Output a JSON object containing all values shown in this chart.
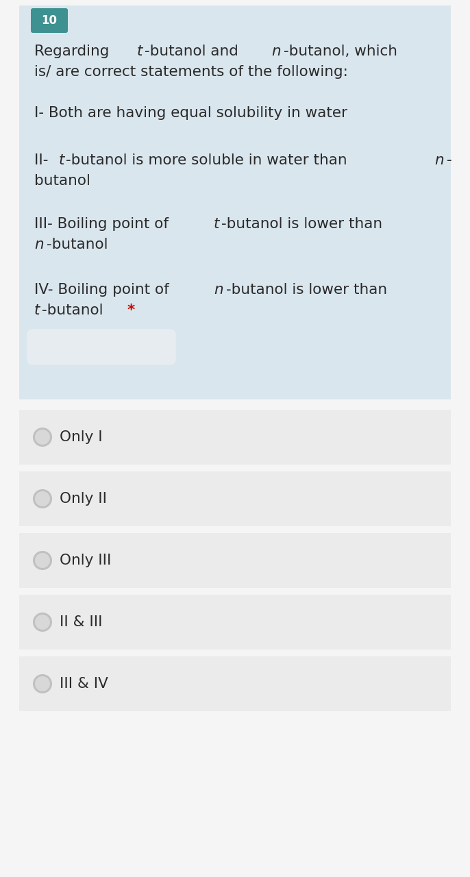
{
  "question_number": "10",
  "question_number_bg": "#3d9191",
  "question_number_color": "#ffffff",
  "question_bg": "#dae6ee",
  "option_bg": "#ebebeb",
  "main_bg": "#f5f5f5",
  "text_color": "#2a2a2a",
  "star_color": "#cc0000",
  "radio_outer": "#c0c0c0",
  "radio_inner": "#d8d8d8",
  "font_size_q": 15.5,
  "font_size_opt": 15.5,
  "options": [
    "Only I",
    "Only II",
    "Only III",
    "II & III",
    "III & IV"
  ]
}
